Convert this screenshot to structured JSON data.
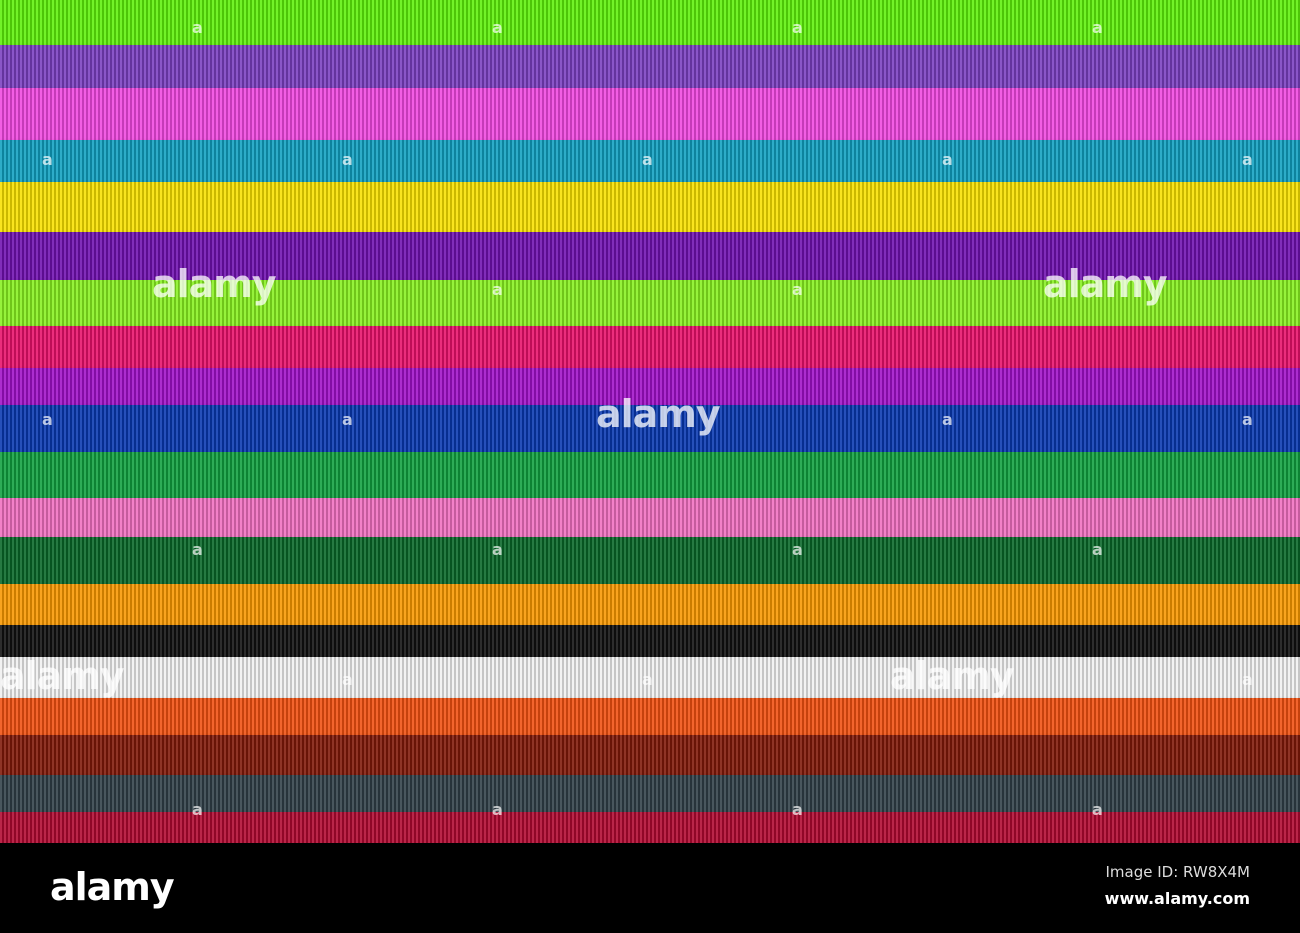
{
  "photo": {
    "stripe_colors": [
      "#5ef00a",
      "#7a3fc0",
      "#f048e0",
      "#10a0c0",
      "#f8e000",
      "#7010b0",
      "#88f020",
      "#e8106a",
      "#a010c8",
      "#0838b0",
      "#10a040",
      "#f070c0",
      "#086828",
      "#f89800",
      "#101010",
      "#f0f0f0",
      "#f05010",
      "#801808",
      "#304048",
      "#b00830"
    ],
    "watermark": "alamy",
    "watermark_mark": "a"
  },
  "footer": {
    "logo": "alamy",
    "image_id": "Image ID: RW8X4M",
    "site": "www.alamy.com"
  }
}
